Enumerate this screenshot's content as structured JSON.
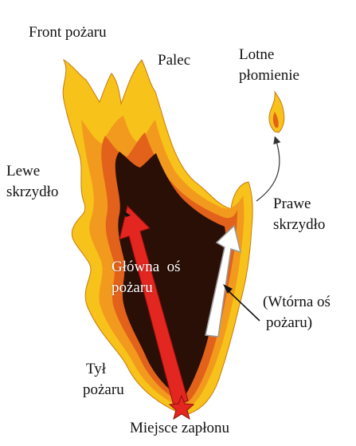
{
  "diagram": {
    "labels": {
      "front": "Front pożaru",
      "finger": "Palec",
      "spot_fire_line1": "Lotne",
      "spot_fire_line2": "płomienie",
      "left_flank_line1": "Lewe",
      "left_flank_line2": "skrzydło",
      "right_flank_line1": "Prawe",
      "right_flank_line2": "skrzydło",
      "main_axis_line1": "Główna  oś",
      "main_axis_line2": "pożaru",
      "secondary_axis_line1": "(Wtórna oś",
      "secondary_axis_line2": "pożaru)",
      "rear_line1": "Tył",
      "rear_line2": "pożaru",
      "origin": "Miejsce zapłonu"
    },
    "colors": {
      "flame_outer": "#f7c21a",
      "flame_mid": "#f29a1d",
      "flame_inner": "#e2611b",
      "burned_core": "#2a0f06",
      "main_axis_arrow": "#e3261f",
      "secondary_axis_arrow": "#ffffff",
      "ignition_star": "#e3261f"
    }
  }
}
